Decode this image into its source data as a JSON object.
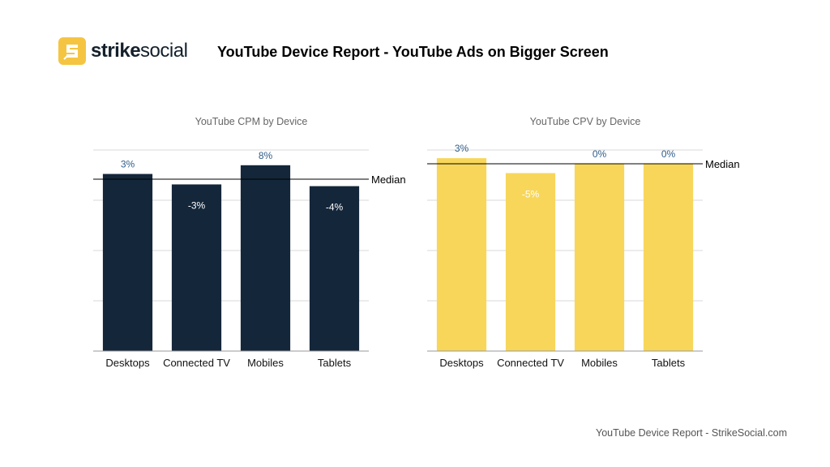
{
  "brand": {
    "name_part1": "strike",
    "name_part2": "social",
    "accent_color": "#F5C542",
    "icon": "strikesocial-logo-icon"
  },
  "report_title": "YouTube Device Report - YouTube Ads on Bigger Screen",
  "footer": "YouTube Device Report - StrikeSocial.com",
  "median_label": "Median",
  "chart_data": [
    {
      "type": "bar",
      "title": "YouTube CPM by Device",
      "categories": [
        "Desktops",
        "Connected TV",
        "Mobiles",
        "Tablets"
      ],
      "values": [
        3,
        -3,
        8,
        -4
      ],
      "value_labels": [
        "3%",
        "-3%",
        "8%",
        "-4%"
      ],
      "unit": "% vs median",
      "reference_line": "Median",
      "bar_color": "#14263A",
      "grid": true
    },
    {
      "type": "bar",
      "title": "YouTube CPV by Device",
      "categories": [
        "Desktops",
        "Connected TV",
        "Mobiles",
        "Tablets"
      ],
      "values": [
        3,
        -5,
        0,
        0
      ],
      "value_labels": [
        "3%",
        "-5%",
        "0%",
        "0%"
      ],
      "unit": "% vs median",
      "reference_line": "Median",
      "bar_color": "#F7D65A",
      "grid": true
    }
  ]
}
